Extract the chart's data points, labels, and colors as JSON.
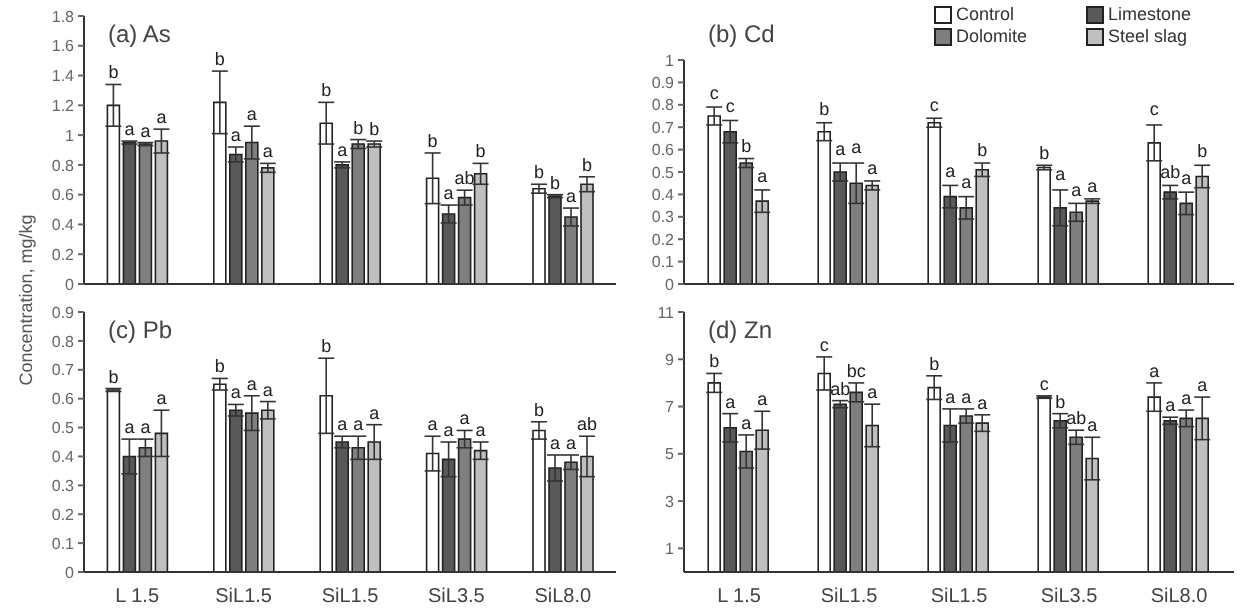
{
  "chart_data": [
    {
      "type": "bar",
      "title": "(a) As",
      "ylabel": "Concentration, mg/kg",
      "categories": [
        null,
        null,
        null,
        null,
        null
      ],
      "ylim": [
        0,
        1.8
      ],
      "yticks": [
        0,
        0.2,
        0.4,
        0.6,
        0.8,
        1,
        1.2,
        1.4,
        1.6,
        1.8
      ],
      "legend": false,
      "tick_labels": "y",
      "series": [
        {
          "color": "#ffffff",
          "values": [
            1.2,
            1.22,
            1.08,
            0.71,
            0.64
          ],
          "errors": [
            0.14,
            0.21,
            0.14,
            0.17,
            0.03
          ],
          "value_labels": [
            "b",
            "b",
            "b",
            "b",
            "b"
          ]
        },
        {
          "color": "#595959",
          "values": [
            0.95,
            0.87,
            0.8,
            0.47,
            0.59
          ],
          "errors": [
            0.01,
            0.05,
            0.02,
            0.06,
            0.01
          ],
          "value_labels": [
            "a",
            "a",
            "a",
            "a",
            "b"
          ]
        },
        {
          "color": "#7f7f7f",
          "values": [
            0.94,
            0.95,
            0.94,
            0.58,
            0.45
          ],
          "errors": [
            0.01,
            0.11,
            0.03,
            0.05,
            0.06
          ],
          "value_labels": [
            "a",
            "a",
            "b",
            "ab",
            "a"
          ]
        },
        {
          "color": "#bfbfbf",
          "values": [
            0.96,
            0.78,
            0.94,
            0.74,
            0.67
          ],
          "errors": [
            0.08,
            0.03,
            0.02,
            0.07,
            0.05
          ],
          "value_labels": [
            "a",
            "a",
            "b",
            "b",
            "b"
          ]
        }
      ]
    },
    {
      "type": "bar",
      "title": "(b) Cd",
      "categories": [
        null,
        null,
        null,
        null,
        null
      ],
      "ylim": [
        0,
        1
      ],
      "yticks": [
        0,
        0.1,
        0.2,
        0.3,
        0.4,
        0.5,
        0.6,
        0.7,
        0.8,
        0.9,
        1
      ],
      "legend": "top right",
      "tick_labels": "y",
      "series": [
        {
          "name": "Control",
          "color": "#ffffff",
          "values": [
            0.75,
            0.68,
            0.72,
            0.52,
            0.63
          ],
          "errors": [
            0.04,
            0.04,
            0.02,
            0.01,
            0.08
          ],
          "value_labels": [
            "c",
            "b",
            "c",
            "b",
            "c"
          ]
        },
        {
          "name": "Limestone",
          "color": "#595959",
          "values": [
            0.68,
            0.5,
            0.39,
            0.34,
            0.41
          ],
          "errors": [
            0.05,
            0.04,
            0.05,
            0.08,
            0.03
          ],
          "value_labels": [
            "c",
            "a",
            "a",
            "a",
            "ab"
          ]
        },
        {
          "name": "Dolomite",
          "color": "#7f7f7f",
          "values": [
            0.54,
            0.45,
            0.34,
            0.32,
            0.36
          ],
          "errors": [
            0.02,
            0.09,
            0.05,
            0.04,
            0.05
          ],
          "value_labels": [
            "b",
            "a",
            "a",
            "a",
            "a"
          ]
        },
        {
          "name": "Steel slag",
          "color": "#bfbfbf",
          "values": [
            0.37,
            0.44,
            0.51,
            0.37,
            0.48
          ],
          "errors": [
            0.05,
            0.02,
            0.03,
            0.01,
            0.05
          ],
          "value_labels": [
            "a",
            "a",
            "b",
            "a",
            "b"
          ]
        }
      ]
    },
    {
      "type": "bar",
      "title": "(c) Pb",
      "categories": [
        "L 1.5",
        "SiL1.5",
        "SiL1.5",
        "SiL3.5",
        "SiL8.0"
      ],
      "ylim": [
        0,
        0.9
      ],
      "yticks": [
        0,
        0.1,
        0.2,
        0.3,
        0.4,
        0.5,
        0.6,
        0.7,
        0.8,
        0.9
      ],
      "legend": false,
      "series": [
        {
          "color": "#ffffff",
          "values": [
            0.63,
            0.65,
            0.61,
            0.41,
            0.49
          ],
          "errors": [
            0.005,
            0.02,
            0.13,
            0.06,
            0.03
          ],
          "value_labels": [
            "b",
            "b",
            "b",
            "a",
            "b"
          ]
        },
        {
          "color": "#595959",
          "values": [
            0.4,
            0.56,
            0.45,
            0.39,
            0.36
          ],
          "errors": [
            0.06,
            0.02,
            0.02,
            0.06,
            0.045
          ],
          "value_labels": [
            "a",
            "a",
            "a",
            "a",
            "a"
          ]
        },
        {
          "color": "#7f7f7f",
          "values": [
            0.43,
            0.55,
            0.43,
            0.46,
            0.38
          ],
          "errors": [
            0.03,
            0.06,
            0.04,
            0.03,
            0.025
          ],
          "value_labels": [
            "a",
            "a",
            "a",
            "a",
            "a"
          ]
        },
        {
          "color": "#bfbfbf",
          "values": [
            0.48,
            0.56,
            0.45,
            0.42,
            0.4
          ],
          "errors": [
            0.08,
            0.03,
            0.06,
            0.03,
            0.07
          ],
          "value_labels": [
            "a",
            "a",
            "a",
            "a",
            "ab"
          ]
        }
      ]
    },
    {
      "type": "bar",
      "title": "(d) Zn",
      "categories": [
        "L 1.5",
        "SiL1.5",
        "SiL1.5",
        "SiL3.5",
        "SiL8.0"
      ],
      "ylim": [
        0,
        11
      ],
      "yticks": [
        1,
        3,
        5,
        7,
        9,
        11
      ],
      "legend": false,
      "series": [
        {
          "color": "#ffffff",
          "values": [
            8.0,
            8.4,
            7.8,
            7.4,
            7.4
          ],
          "errors": [
            0.4,
            0.7,
            0.5,
            0.05,
            0.6
          ],
          "value_labels": [
            "b",
            "c",
            "b",
            "c",
            "a"
          ]
        },
        {
          "color": "#595959",
          "values": [
            6.1,
            7.1,
            6.2,
            6.4,
            6.4
          ],
          "errors": [
            0.6,
            0.15,
            0.7,
            0.3,
            0.15
          ],
          "value_labels": [
            "a",
            "ab",
            "a",
            "b",
            "a"
          ]
        },
        {
          "color": "#7f7f7f",
          "values": [
            5.1,
            7.6,
            6.6,
            5.7,
            6.5
          ],
          "errors": [
            0.7,
            0.4,
            0.3,
            0.3,
            0.35
          ],
          "value_labels": [
            "a",
            "bc",
            "a",
            "ab",
            "a"
          ]
        },
        {
          "color": "#bfbfbf",
          "values": [
            6.0,
            6.2,
            6.3,
            4.8,
            6.5
          ],
          "errors": [
            0.8,
            0.9,
            0.35,
            0.9,
            0.9
          ],
          "value_labels": [
            "a",
            "a",
            "a",
            "a",
            "a"
          ]
        }
      ]
    }
  ]
}
